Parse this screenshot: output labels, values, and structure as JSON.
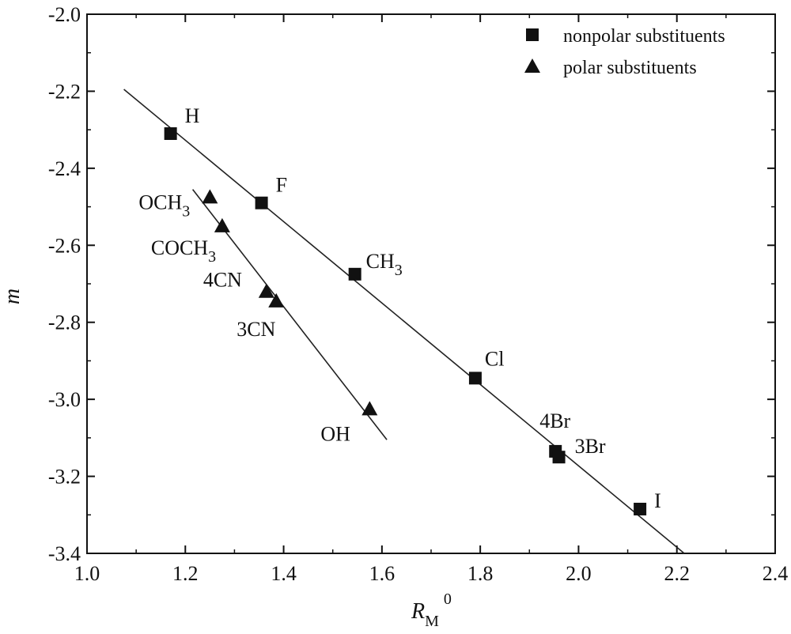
{
  "chart_data": {
    "type": "scatter",
    "xlabel": "R",
    "xlabel_subscript": "M",
    "xlabel_superscript": "0",
    "ylabel": "m",
    "xlim": [
      1.0,
      2.4
    ],
    "ylim": [
      -3.4,
      -2.0
    ],
    "xticks": [
      "1.0",
      "1.2",
      "1.4",
      "1.6",
      "1.8",
      "2.0",
      "2.2",
      "2.4"
    ],
    "yticks": [
      "-2.0",
      "-2.2",
      "-2.4",
      "-2.6",
      "-2.8",
      "-3.0",
      "-3.2",
      "-3.4"
    ],
    "legend_position": "top-right",
    "series": [
      {
        "name": "nonpolar substituents",
        "marker": "square",
        "color": "#111111",
        "points": [
          {
            "label": "H",
            "x": 1.17,
            "y": -2.31
          },
          {
            "label": "F",
            "x": 1.355,
            "y": -2.49
          },
          {
            "label": "CH",
            "label_sub": "3",
            "x": 1.545,
            "y": -2.675
          },
          {
            "label": "Cl",
            "x": 1.79,
            "y": -2.945
          },
          {
            "label": "4Br",
            "x": 1.953,
            "y": -3.135
          },
          {
            "label": "3Br",
            "x": 1.96,
            "y": -3.15
          },
          {
            "label": "I",
            "x": 2.125,
            "y": -3.285
          }
        ],
        "fit_line": {
          "x": [
            1.075,
            2.215
          ],
          "y": [
            -2.195,
            -3.4
          ]
        }
      },
      {
        "name": "polar substituents",
        "marker": "triangle",
        "color": "#111111",
        "points": [
          {
            "label": "OCH",
            "label_sub": "3",
            "x": 1.25,
            "y": -2.475
          },
          {
            "label": "COCH",
            "label_sub": "3",
            "x": 1.275,
            "y": -2.55
          },
          {
            "label": "4CN",
            "x": 1.365,
            "y": -2.72
          },
          {
            "label": "3CN",
            "x": 1.385,
            "y": -2.745
          },
          {
            "label": "OH",
            "x": 1.575,
            "y": -3.025
          }
        ],
        "fit_line": {
          "x": [
            1.215,
            1.61
          ],
          "y": [
            -2.455,
            -3.105
          ]
        }
      }
    ]
  }
}
